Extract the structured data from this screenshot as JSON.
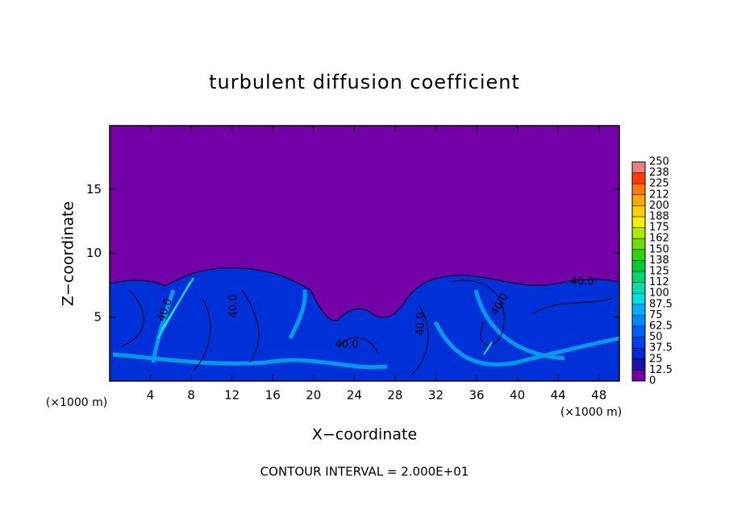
{
  "chart_data": {
    "type": "contour",
    "title": "turbulent diffusion coefficient",
    "x_label": "X−coordinate",
    "y_label": "Z−coordinate",
    "x_unit_left": "(×1000 m)",
    "x_unit_right": "(×1000 m)",
    "footer": "CONTOUR INTERVAL = 2.000E+01",
    "contour_labels": [
      "40.0",
      "40.0",
      "40.0",
      "40.0",
      "40.0",
      "40.0"
    ],
    "xlim": [
      0,
      50
    ],
    "xticks": [
      4,
      8,
      12,
      16,
      20,
      24,
      28,
      32,
      36,
      40,
      44,
      48
    ],
    "ylim": [
      0,
      20
    ],
    "yticks": [
      5,
      10,
      15
    ],
    "colorbar": {
      "lim": [
        0,
        250
      ],
      "ticks": [
        0,
        12.5,
        25,
        37.5,
        50,
        62.5,
        75,
        87.5,
        100,
        {
          "value": 112.5,
          "label": "112"
        },
        125,
        {
          "value": 137.5,
          "label": "138"
        },
        150,
        {
          "value": 162.5,
          "label": "162"
        },
        175,
        {
          "value": 187.5,
          "label": "188"
        },
        200,
        {
          "value": 212.5,
          "label": "212"
        },
        225,
        {
          "value": 237.5,
          "label": "238"
        },
        250
      ],
      "colors": [
        "#7400a8",
        "#1c10b0",
        "#0028d8",
        "#0040f0",
        "#0060ff",
        "#0088ff",
        "#00b0ff",
        "#00e0e8",
        "#00e0a8",
        "#00d870",
        "#00cc30",
        "#30d400",
        "#70e000",
        "#b0e800",
        "#f0f000",
        "#ffd000",
        "#ffa800",
        "#ff7800",
        "#ff3800",
        "#f08080"
      ]
    }
  }
}
